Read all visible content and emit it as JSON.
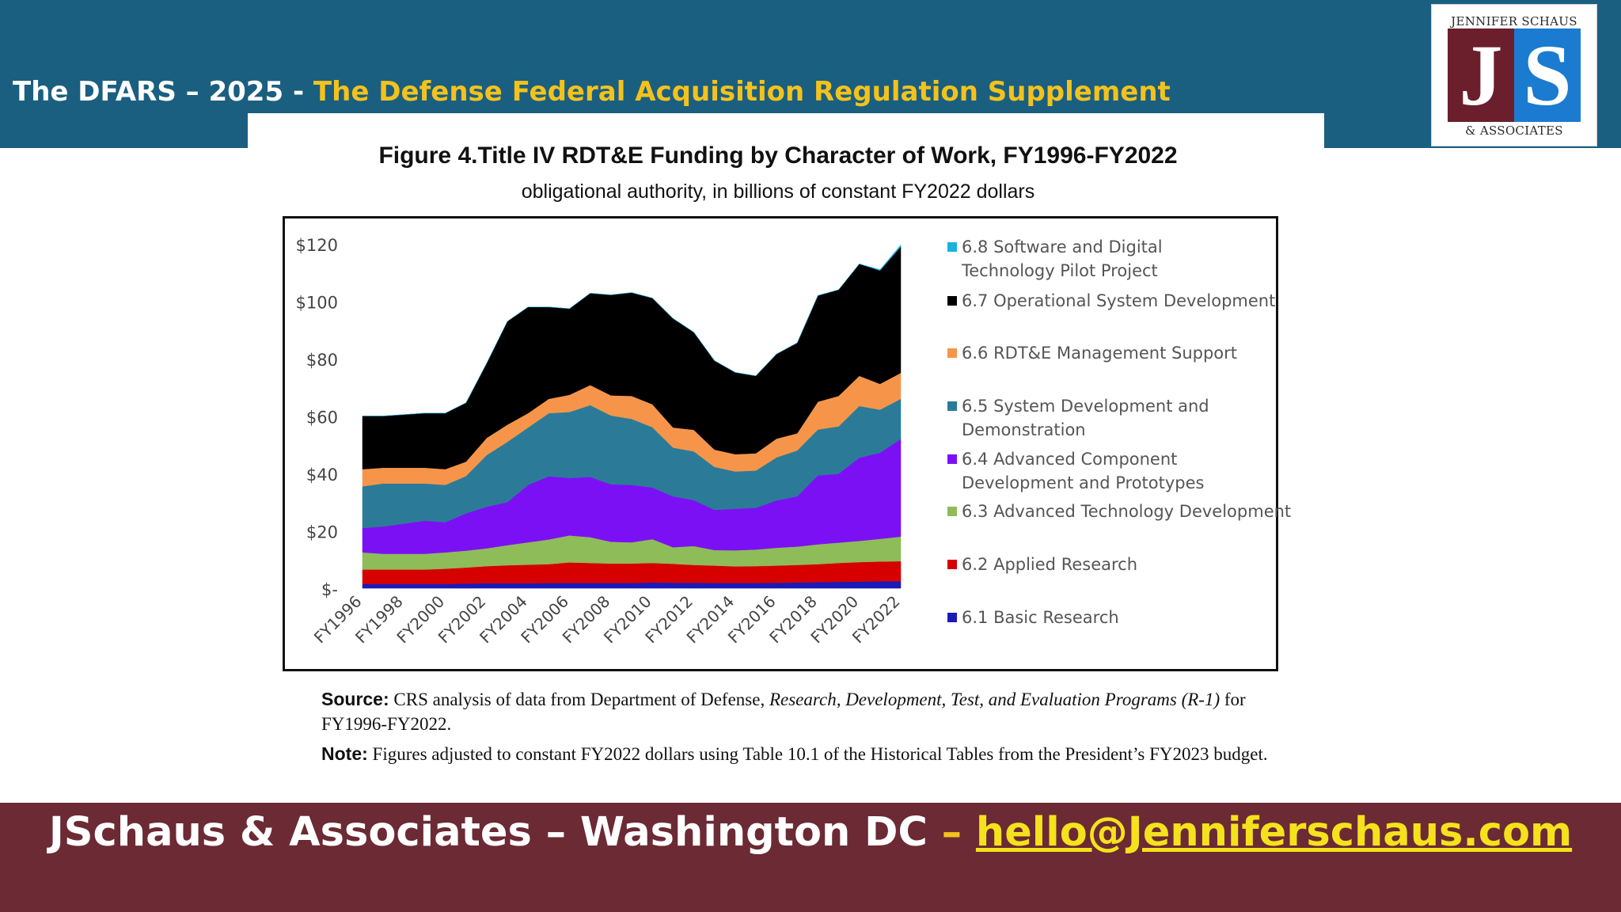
{
  "header": {
    "title_prefix": "The DFARS – 2025 - ",
    "title_accent": "The Defense Federal Acquisition Regulation Supplement"
  },
  "logo": {
    "top_text": "JENNIFER SCHAUS",
    "letter_left": "J",
    "letter_right": "S",
    "bottom_text": "& ASSOCIATES"
  },
  "figure": {
    "title": "Figure 4.Title IV RDT&E Funding by Character of Work, FY1996-FY2022",
    "subtitle": "obligational authority, in billions of constant FY2022 dollars",
    "source_label": "Source:",
    "source_text_1": " CRS analysis of data from Department of Defense, ",
    "source_italic": "Research, Development, Test, and Evaluation Programs (R-1)",
    "source_text_2": " for FY1996-FY2022.",
    "note_label": "Note:",
    "note_text": " Figures adjusted to constant FY2022 dollars using Table 10.1 of the Historical Tables from the President’s FY2023 budget."
  },
  "footer": {
    "text": "JSchaus & Associates – Washington DC ",
    "dash": "– ",
    "email": "hello@Jenniferschaus.com"
  },
  "chart_data": {
    "type": "area",
    "stacked": true,
    "x": [
      "FY1996",
      "FY1997",
      "FY1998",
      "FY1999",
      "FY2000",
      "FY2001",
      "FY2002",
      "FY2003",
      "FY2004",
      "FY2005",
      "FY2006",
      "FY2007",
      "FY2008",
      "FY2009",
      "FY2010",
      "FY2011",
      "FY2012",
      "FY2013",
      "FY2014",
      "FY2015",
      "FY2016",
      "FY2017",
      "FY2018",
      "FY2019",
      "FY2020",
      "FY2021",
      "FY2022"
    ],
    "x_tick_labels": [
      "FY1996",
      "FY1998",
      "FY2000",
      "FY2002",
      "FY2004",
      "FY2006",
      "FY2008",
      "FY2010",
      "FY2012",
      "FY2014",
      "FY2016",
      "FY2018",
      "FY2020",
      "FY2022"
    ],
    "y_ticks": [
      "$-",
      "$20",
      "$40",
      "$60",
      "$80",
      "$100",
      "$120"
    ],
    "ylim": [
      0,
      120
    ],
    "series": [
      {
        "name": "6.1 Basic Research",
        "color": "#1a1ab8",
        "values": [
          1.5,
          1.5,
          1.5,
          1.5,
          1.5,
          1.6,
          1.7,
          1.7,
          1.7,
          1.8,
          1.8,
          1.8,
          1.8,
          1.8,
          2.0,
          1.9,
          1.9,
          1.8,
          1.8,
          1.8,
          1.9,
          2.0,
          2.1,
          2.2,
          2.3,
          2.4,
          2.4
        ]
      },
      {
        "name": "6.2  Applied Research",
        "color": "#d60000",
        "values": [
          5.0,
          5.0,
          5.0,
          5.0,
          5.3,
          5.6,
          6.0,
          6.3,
          6.5,
          6.6,
          7.2,
          7.0,
          6.8,
          6.8,
          6.8,
          6.6,
          6.2,
          6.1,
          5.8,
          5.9,
          6.0,
          6.1,
          6.3,
          6.6,
          6.8,
          6.9,
          7.0
        ]
      },
      {
        "name": "6.3  Advanced Technology Development",
        "color": "#8ebc58",
        "values": [
          6.0,
          5.5,
          5.5,
          5.5,
          5.7,
          5.9,
          6.2,
          7.0,
          7.8,
          8.6,
          9.4,
          9.0,
          7.6,
          7.4,
          8.3,
          5.8,
          6.6,
          5.4,
          5.6,
          5.8,
          6.2,
          6.4,
          6.9,
          7.1,
          7.4,
          7.9,
          8.6
        ]
      },
      {
        "name": "6.4 Advanced Component Development and Prototypes",
        "color": "#7b10f5",
        "values": [
          8.5,
          9.5,
          10.5,
          11.5,
          10.5,
          13.0,
          14.5,
          15.0,
          20.0,
          22.0,
          20.0,
          21.0,
          20.0,
          20.0,
          18.0,
          17.7,
          16.0,
          14.0,
          14.5,
          14.5,
          16.5,
          17.5,
          24.0,
          24.0,
          29.0,
          30.0,
          34.0
        ]
      },
      {
        "name": "6.5 System Development and Demonstration",
        "color": "#2b7b98",
        "values": [
          14.5,
          15.0,
          14.0,
          13.0,
          13.0,
          13.0,
          18.0,
          21.0,
          20.0,
          22.0,
          23.0,
          25.0,
          24.0,
          23.0,
          21.0,
          17.0,
          17.0,
          15.0,
          13.0,
          13.0,
          15.0,
          16.0,
          16.0,
          16.5,
          18.0,
          15.0,
          14.0
        ]
      },
      {
        "name": "6.6 RDT&E Management Support",
        "color": "#f6954a",
        "values": [
          6.0,
          5.5,
          5.5,
          5.5,
          5.5,
          5.0,
          6.0,
          6.0,
          5.0,
          5.0,
          6.0,
          7.0,
          7.0,
          8.0,
          8.0,
          7.0,
          7.5,
          6.0,
          6.0,
          6.0,
          6.5,
          6.0,
          9.7,
          10.6,
          10.5,
          9.0,
          9.0
        ]
      },
      {
        "name": "6.7 Operational System Development",
        "color": "#000000",
        "values": [
          18.5,
          18.0,
          18.5,
          19.0,
          19.5,
          20.5,
          26.0,
          36.0,
          37.0,
          32.0,
          30.0,
          32.0,
          35.0,
          36.0,
          37.0,
          38.0,
          34.0,
          31.0,
          28.5,
          27.0,
          29.5,
          31.5,
          37.0,
          37.0,
          39.0,
          39.5,
          44.0
        ]
      },
      {
        "name": "6.8 Software and Digital Technology Pilot Project",
        "color": "#1ab0e0",
        "values": [
          0,
          0,
          0,
          0,
          0,
          0,
          0,
          0,
          0,
          0,
          0,
          0,
          0,
          0,
          0,
          0,
          0,
          0,
          0,
          0,
          0,
          0,
          0,
          0,
          0,
          0.3,
          0.6
        ]
      }
    ],
    "legend_position": "right"
  }
}
